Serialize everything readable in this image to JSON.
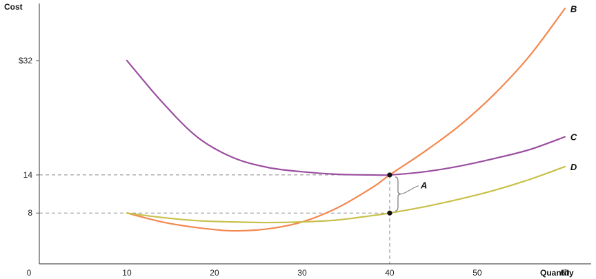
{
  "chart_data": {
    "type": "line",
    "xlabel": "Quantity",
    "ylabel": "Cost",
    "x_ticks": [
      0,
      10,
      20,
      30,
      40,
      50,
      60
    ],
    "y_ticks": [
      {
        "value": 8,
        "label": "8"
      },
      {
        "value": 14,
        "label": "14"
      },
      {
        "value": 32,
        "label": "$32"
      }
    ],
    "xlim": [
      0,
      63
    ],
    "ylim": [
      0,
      41
    ],
    "grid": false,
    "series": [
      {
        "name": "B",
        "color": "#f4874f",
        "x": [
          10,
          14,
          18,
          22,
          26,
          30,
          34,
          38,
          40,
          44,
          48,
          52,
          56,
          60
        ],
        "y": [
          8,
          6.6,
          5.7,
          5.2,
          5.5,
          6.6,
          8.8,
          12,
          14,
          17.7,
          21.8,
          26.8,
          32.8,
          40.2
        ]
      },
      {
        "name": "C",
        "color": "#9b4ea0",
        "x": [
          10,
          14,
          18,
          22,
          26,
          30,
          34,
          38,
          40,
          44,
          48,
          52,
          56,
          60
        ],
        "y": [
          32,
          25.5,
          20,
          16.8,
          15.2,
          14.5,
          14.1,
          14,
          14,
          14.5,
          15.4,
          16.6,
          18,
          20
        ]
      },
      {
        "name": "D",
        "color": "#c8c04a",
        "x": [
          10,
          14,
          18,
          22,
          26,
          30,
          34,
          38,
          40,
          44,
          48,
          52,
          56,
          60
        ],
        "y": [
          8,
          7.3,
          6.8,
          6.6,
          6.5,
          6.6,
          6.9,
          7.6,
          8,
          9,
          10.2,
          11.6,
          13.3,
          15.3
        ]
      }
    ],
    "points": [
      {
        "x": 40,
        "y": 14
      },
      {
        "x": 40,
        "y": 8
      }
    ],
    "reference_lines": [
      {
        "axis": "y",
        "value": 14
      },
      {
        "axis": "y",
        "value": 8
      },
      {
        "axis": "x",
        "value": 40
      }
    ],
    "annotations": [
      {
        "text": "A",
        "x": 40,
        "y_from": 8,
        "y_to": 14
      }
    ]
  }
}
